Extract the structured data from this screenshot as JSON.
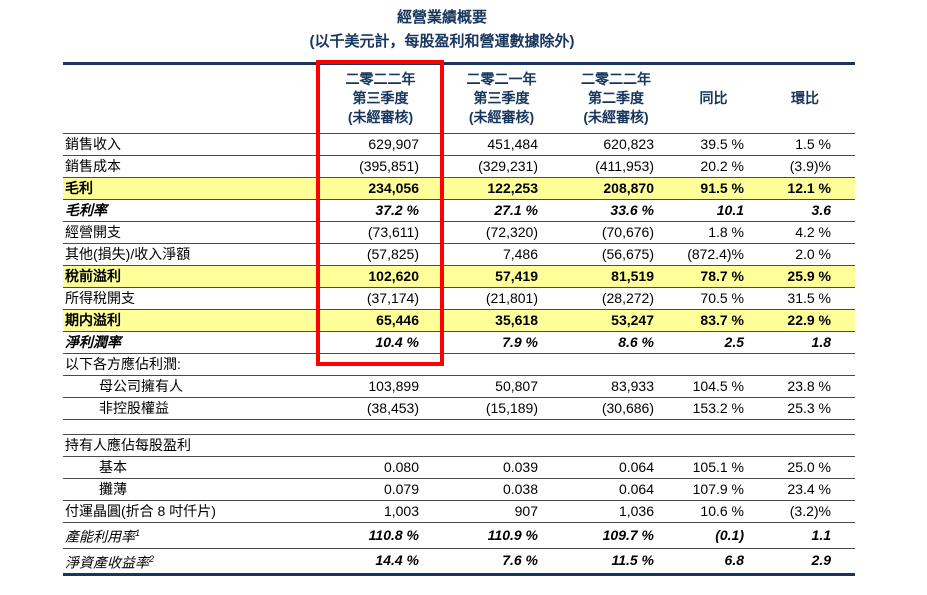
{
  "colors": {
    "navy": "#17365D",
    "highlight_yellow": "#FFFF99",
    "red_box": "#FF0000",
    "row_line": "#4A4A4A"
  },
  "title": "經營業績概要",
  "subtitle": "(以千美元計，每股盈利和營運數據除外)",
  "table": {
    "header": {
      "col1": "二零二二年\n第三季度\n(未經審核)",
      "col2": "二零二一年\n第三季度\n(未經審核)",
      "col3": "二零二二年\n第二季度\n(未經審核)",
      "col4": "同比",
      "col5": "環比"
    },
    "rows": [
      {
        "label": "銷售收入",
        "style": "normal",
        "values": [
          "629,907",
          "451,484",
          "620,823",
          "39.5 %",
          "1.5 %"
        ]
      },
      {
        "label": "銷售成本",
        "style": "normal",
        "values": [
          "(395,851)",
          "(329,231)",
          "(411,953)",
          "20.2 %",
          "(3.9)%"
        ]
      },
      {
        "label": "毛利",
        "style": "hl",
        "values": [
          "234,056",
          "122,253",
          "208,870",
          "91.5 %",
          "12.1 %"
        ]
      },
      {
        "label": "毛利率",
        "style": "ratio",
        "values": [
          "37.2 %",
          "27.1 %",
          "33.6 %",
          "10.1",
          "3.6"
        ]
      },
      {
        "label": "經營開支",
        "style": "normal",
        "values": [
          "(73,611)",
          "(72,320)",
          "(70,676)",
          "1.8 %",
          "4.2 %"
        ]
      },
      {
        "label": "其他(損失)/收入淨額",
        "style": "normal",
        "values": [
          "(57,825)",
          "7,486",
          "(56,675)",
          "(872.4)%",
          "2.0 %"
        ]
      },
      {
        "label": "稅前溢利",
        "style": "hl",
        "values": [
          "102,620",
          "57,419",
          "81,519",
          "78.7 %",
          "25.9 %"
        ]
      },
      {
        "label": "所得稅開支",
        "style": "normal",
        "values": [
          "(37,174)",
          "(21,801)",
          "(28,272)",
          "70.5 %",
          "31.5 %"
        ]
      },
      {
        "label": "期内溢利",
        "style": "hl",
        "values": [
          "65,446",
          "35,618",
          "53,247",
          "83.7 %",
          "22.9 %"
        ]
      },
      {
        "label": "淨利潤率",
        "style": "ratio",
        "values": [
          "10.4 %",
          "7.9 %",
          "8.6 %",
          "2.5",
          "1.8"
        ]
      },
      {
        "label": "以下各方應佔利潤:",
        "style": "section",
        "values": [
          "",
          "",
          "",
          "",
          ""
        ]
      },
      {
        "label": "母公司擁有人",
        "style": "indent",
        "values": [
          "103,899",
          "50,807",
          "83,933",
          "104.5 %",
          "23.8 %"
        ]
      },
      {
        "label": "非控股權益",
        "style": "indent",
        "values": [
          "(38,453)",
          "(15,189)",
          "(30,686)",
          "153.2 %",
          "25.3 %"
        ]
      },
      {
        "label": "",
        "style": "spacer",
        "values": [
          "",
          "",
          "",
          "",
          ""
        ]
      },
      {
        "label": "持有人應佔每股盈利",
        "style": "section",
        "values": [
          "",
          "",
          "",
          "",
          ""
        ]
      },
      {
        "label": "基本",
        "style": "indent",
        "values": [
          "0.080",
          "0.039",
          "0.064",
          "105.1 %",
          "25.0 %"
        ]
      },
      {
        "label": "攤薄",
        "style": "indent",
        "values": [
          "0.079",
          "0.038",
          "0.064",
          "107.9 %",
          "23.4 %"
        ]
      },
      {
        "label": "付運晶圓(折合 8 吋仟片)",
        "style": "normal",
        "values": [
          "1,003",
          "907",
          "1,036",
          "10.6 %",
          "(3.2)%"
        ]
      },
      {
        "label": "產能利用率",
        "sup": "1",
        "style": "metric",
        "values": [
          "110.8 %",
          "110.9 %",
          "109.7 %",
          "(0.1)",
          "1.1"
        ]
      },
      {
        "label": "淨資產收益率",
        "sup": "2",
        "style": "metric",
        "values": [
          "14.4 %",
          "7.6 %",
          "11.5 %",
          "6.8",
          "2.9"
        ]
      }
    ]
  }
}
